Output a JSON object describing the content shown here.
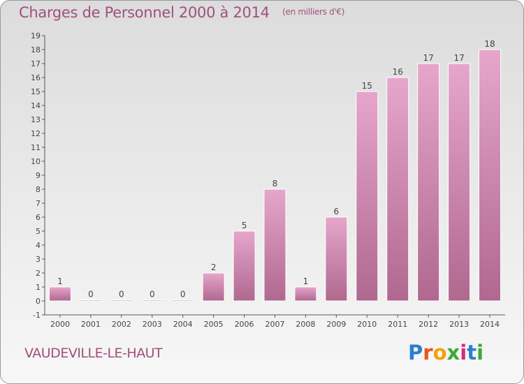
{
  "title": "Charges de Personnel 2000 à 2014",
  "subtitle": "(en milliers d'€)",
  "location": "VAUDEVILLE-LE-HAUT",
  "logo": {
    "text": "Proxiti",
    "letters": [
      "P",
      "r",
      "o",
      "x",
      "i",
      "t",
      "i"
    ],
    "colors": [
      "#2a7fd0",
      "#e8541e",
      "#f2a20c",
      "#3aa935",
      "#d42b7c",
      "#2a7fd0",
      "#3aa935"
    ]
  },
  "colors": {
    "title": "#a0507a",
    "bar_top": "#e6a6cc",
    "bar_bottom": "#b0688f",
    "bar_stroke": "#ffffff",
    "axis": "#555555"
  },
  "chart_data": {
    "type": "bar",
    "categories": [
      "2000",
      "2001",
      "2002",
      "2003",
      "2004",
      "2005",
      "2006",
      "2007",
      "2008",
      "2009",
      "2010",
      "2011",
      "2012",
      "2013",
      "2014"
    ],
    "values": [
      1,
      0,
      0,
      0,
      0,
      2,
      5,
      8,
      1,
      6,
      15,
      16,
      17,
      17,
      18
    ],
    "data_labels": [
      "1",
      "0",
      "0",
      "0",
      "0",
      "2",
      "5",
      "8",
      "1",
      "6",
      "15",
      "16",
      "17",
      "17",
      "18"
    ],
    "ylim": [
      -1,
      19
    ],
    "yticks": [
      -1,
      0,
      1,
      2,
      3,
      4,
      5,
      6,
      7,
      8,
      9,
      10,
      11,
      12,
      13,
      14,
      15,
      16,
      17,
      18,
      19
    ],
    "grid": false,
    "legend": "none"
  }
}
